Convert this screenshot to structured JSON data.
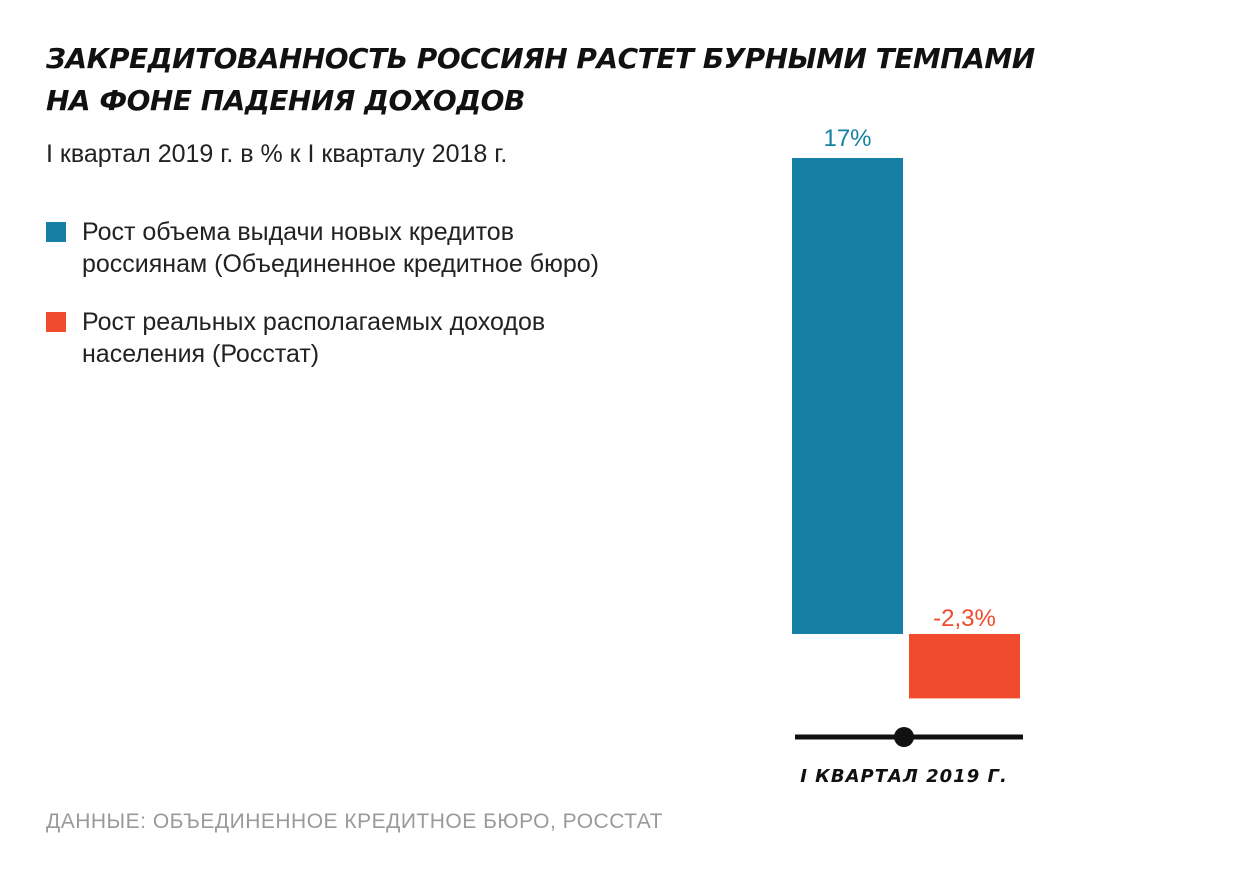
{
  "header": {
    "title_line1": "ЗАКРЕДИТОВАННОСТЬ РОССИЯН РАСТЕТ БУРНЫМИ ТЕМПАМИ",
    "title_line2": "НА ФОНЕ ПАДЕНИЯ ДОХОДОВ",
    "subtitle": "I квартал 2019 г. в % к I кварталу 2018 г."
  },
  "legend": [
    {
      "label": "Рост объема выдачи новых кредитов\nроссиянам (Объединенное кредитное бюро)",
      "color": "#1580a3"
    },
    {
      "label": "Рост реальных располагаемых доходов\nнаселения (Росстат)",
      "color": "#f04b2c"
    }
  ],
  "footer": {
    "source": "ДАННЫЕ: ОБЪЕДИНЕННОЕ КРЕДИТНОЕ БЮРО, РОССТАТ"
  },
  "chart_data": {
    "type": "bar",
    "categories": [
      "I КВАРТАЛ 2019 Г."
    ],
    "series": [
      {
        "name": "Рост объема выдачи новых кредитов россиянам (Объединенное кредитное бюро)",
        "values": [
          17
        ],
        "label": "17%",
        "color": "#1580a3"
      },
      {
        "name": "Рост реальных располагаемых доходов населения (Росстат)",
        "values": [
          -2.3
        ],
        "label": "-2,3%",
        "color": "#f04b2c"
      }
    ],
    "ylim": [
      -2.3,
      17
    ],
    "grid": false,
    "legend_position": "left"
  }
}
